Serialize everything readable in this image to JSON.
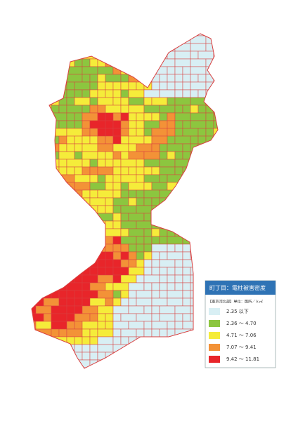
{
  "legend": {
    "title": "町丁目：電柱被害密度",
    "subtitle": "【東京湾北部】単位：箇所／ｋ㎡",
    "items": [
      {
        "label": "2.35 以下",
        "color": "#d8eff4"
      },
      {
        "label": "2.36 ～ 4.70",
        "color": "#8cc63f"
      },
      {
        "label": "4.71 ～ 7.06",
        "color": "#f5ec3a"
      },
      {
        "label": "7.07 ～ 9.41",
        "color": "#f39237"
      },
      {
        "label": "9.42 ～ 11.81",
        "color": "#e8252a"
      }
    ]
  }
}
